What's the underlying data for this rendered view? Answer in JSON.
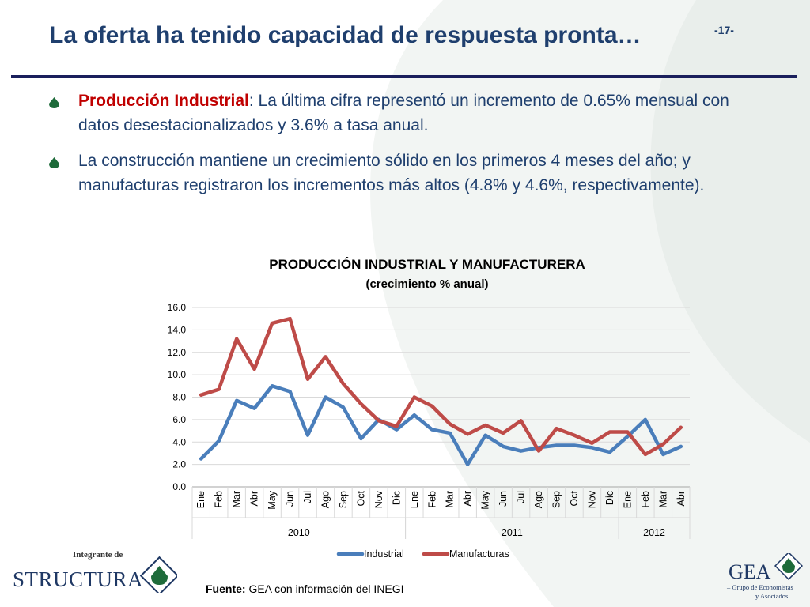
{
  "slide": {
    "title": "La oferta ha tenido capacidad de respuesta pronta…",
    "page_number": "-17-"
  },
  "bullets": [
    {
      "lead": "Producción Industrial",
      "text": ": La última cifra representó un incremento de 0.65% mensual con datos desestacionalizados y 3.6% a tasa anual."
    },
    {
      "lead": "",
      "text": "La construcción mantiene un crecimiento sólido en los primeros 4 meses del año; y manufacturas registraron los incrementos más altos (4.8% y 4.6%, respectivamente)."
    }
  ],
  "chart_data": {
    "type": "line",
    "title": "PRODUCCIÓN INDUSTRIAL Y MANUFACTURERA",
    "subtitle": "(crecimiento % anual)",
    "categories": [
      "Ene",
      "Feb",
      "Mar",
      "Abr",
      "May",
      "Jun",
      "Jul",
      "Ago",
      "Sep",
      "Oct",
      "Nov",
      "Dic",
      "Ene",
      "Feb",
      "Mar",
      "Abr",
      "May",
      "Jun",
      "Jul",
      "Ago",
      "Sep",
      "Oct",
      "Nov",
      "Dic",
      "Ene",
      "Feb",
      "Mar",
      "Abr"
    ],
    "year_groups": [
      {
        "label": "2010",
        "count": 12
      },
      {
        "label": "2011",
        "count": 12
      },
      {
        "label": "2012",
        "count": 4
      }
    ],
    "y_ticks": [
      "0.0",
      "2.0",
      "4.0",
      "6.0",
      "8.0",
      "10.0",
      "12.0",
      "14.0",
      "16.0"
    ],
    "ylim": [
      0,
      16
    ],
    "grid": true,
    "legend_position": "bottom",
    "series": [
      {
        "name": "Industrial",
        "color": "#4a7ebb",
        "values": [
          2.5,
          4.1,
          7.7,
          7.0,
          9.0,
          8.5,
          4.6,
          8.0,
          7.1,
          4.3,
          6.0,
          5.1,
          6.4,
          5.1,
          4.8,
          2.0,
          4.6,
          3.6,
          3.2,
          3.5,
          3.7,
          3.7,
          3.5,
          3.1,
          4.5,
          6.0,
          2.9,
          3.6
        ]
      },
      {
        "name": "Manufacturas",
        "color": "#be4b48",
        "values": [
          8.2,
          8.7,
          13.2,
          10.5,
          14.6,
          15.0,
          9.6,
          11.6,
          9.2,
          7.4,
          5.9,
          5.4,
          8.0,
          7.2,
          5.6,
          4.7,
          5.5,
          4.8,
          5.9,
          3.2,
          5.2,
          4.6,
          3.9,
          4.9,
          4.9,
          2.9,
          3.8,
          5.3
        ]
      }
    ]
  },
  "footer": {
    "source_label": "Fuente:",
    "source_text": " GEA con información del INEGI"
  },
  "logos": {
    "left_top": "Integrante de",
    "left_main": "STRUCTURA",
    "right_main": "GEA",
    "right_sub1": "– Grupo de Economistas",
    "right_sub2": "y Asociados"
  },
  "colors": {
    "title": "#1f3f6e",
    "accent_red": "#c00000",
    "rule": "#1a1f5c",
    "bullet": "#1e6b3a"
  }
}
